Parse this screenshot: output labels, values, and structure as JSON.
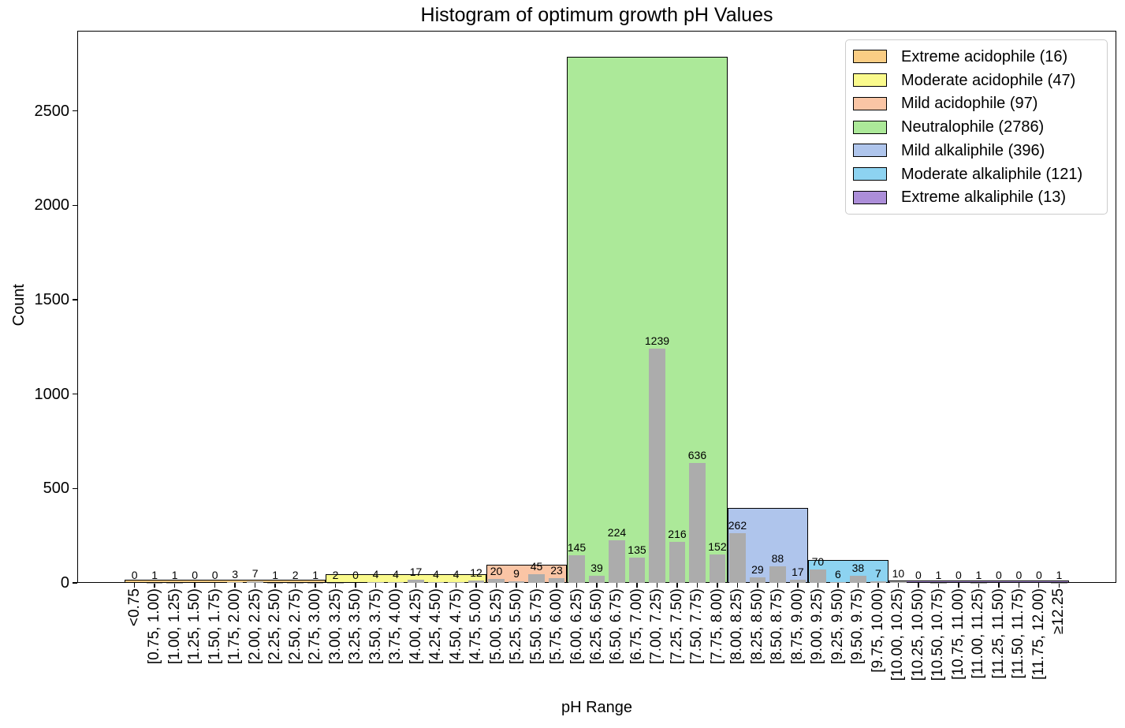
{
  "chart_data": {
    "type": "bar",
    "title": "Histogram of optimum growth pH Values",
    "xlabel": "pH Range",
    "ylabel": "Count",
    "ylim": [
      0,
      2925
    ],
    "yticks": [
      0,
      500,
      1000,
      1500,
      2000,
      2500
    ],
    "grid": false,
    "bar_color": "#ACACAC",
    "categories": [
      "<0.75",
      "[0.75, 1.00)",
      "[1.00, 1.25)",
      "[1.25, 1.50)",
      "[1.50, 1.75)",
      "[1.75, 2.00)",
      "[2.00, 2.25)",
      "[2.25, 2.50)",
      "[2.50, 2.75)",
      "[2.75, 3.00)",
      "[3.00, 3.25)",
      "[3.25, 3.50)",
      "[3.50, 3.75)",
      "[3.75, 4.00)",
      "[4.00, 4.25)",
      "[4.25, 4.50)",
      "[4.50, 4.75)",
      "[4.75, 5.00)",
      "[5.00, 5.25)",
      "[5.25, 5.50)",
      "[5.50, 5.75)",
      "[5.75, 6.00)",
      "[6.00, 6.25)",
      "[6.25, 6.50)",
      "[6.50, 6.75)",
      "[6.75, 7.00)",
      "[7.00, 7.25)",
      "[7.25, 7.50)",
      "[7.50, 7.75)",
      "[7.75, 8.00)",
      "[8.00, 8.25)",
      "[8.25, 8.50)",
      "[8.50, 8.75)",
      "[8.75, 9.00)",
      "[9.00, 9.25)",
      "[9.25, 9.50)",
      "[9.50, 9.75)",
      "[9.75, 10.00)",
      "[10.00, 10.25)",
      "[10.25, 10.50)",
      "[10.50, 10.75)",
      "[10.75, 11.00)",
      "[11.00, 11.25)",
      "[11.25, 11.50)",
      "[11.50, 11.75)",
      "[11.75, 12.00)",
      "≥12.25"
    ],
    "values": [
      0,
      1,
      1,
      0,
      0,
      3,
      7,
      1,
      2,
      1,
      2,
      0,
      4,
      4,
      17,
      4,
      4,
      12,
      20,
      9,
      45,
      23,
      145,
      39,
      224,
      135,
      1239,
      216,
      636,
      152,
      262,
      29,
      88,
      17,
      70,
      6,
      38,
      7,
      10,
      0,
      1,
      0,
      1,
      0,
      0,
      0,
      1
    ],
    "groups": [
      {
        "name": "Extreme acidophile",
        "total": 16,
        "bin_start": 0,
        "bin_end": 9,
        "color": "#FACD84"
      },
      {
        "name": "Moderate acidophile",
        "total": 47,
        "bin_start": 10,
        "bin_end": 17,
        "color": "#FAFA8C"
      },
      {
        "name": "Mild acidophile",
        "total": 97,
        "bin_start": 18,
        "bin_end": 21,
        "color": "#FAC5A5"
      },
      {
        "name": "Neutralophile",
        "total": 2786,
        "bin_start": 22,
        "bin_end": 29,
        "color": "#ACE999"
      },
      {
        "name": "Mild alkaliphile",
        "total": 396,
        "bin_start": 30,
        "bin_end": 33,
        "color": "#AFC5EC"
      },
      {
        "name": "Moderate alkaliphile",
        "total": 121,
        "bin_start": 34,
        "bin_end": 37,
        "color": "#8DD3F1"
      },
      {
        "name": "Extreme alkaliphile",
        "total": 13,
        "bin_start": 38,
        "bin_end": 46,
        "color": "#AC8ED9"
      }
    ],
    "legend": {
      "position": "upper right",
      "entries": [
        {
          "label": "Extreme acidophile (16)",
          "color": "#FACD84"
        },
        {
          "label": "Moderate acidophile (47)",
          "color": "#FAFA8C"
        },
        {
          "label": "Mild acidophile (97)",
          "color": "#FAC5A5"
        },
        {
          "label": "Neutralophile (2786)",
          "color": "#ACE999"
        },
        {
          "label": "Mild alkaliphile (396)",
          "color": "#AFC5EC"
        },
        {
          "label": "Moderate alkaliphile (121)",
          "color": "#8DD3F1"
        },
        {
          "label": "Extreme alkaliphile (13)",
          "color": "#AC8ED9"
        }
      ]
    }
  }
}
